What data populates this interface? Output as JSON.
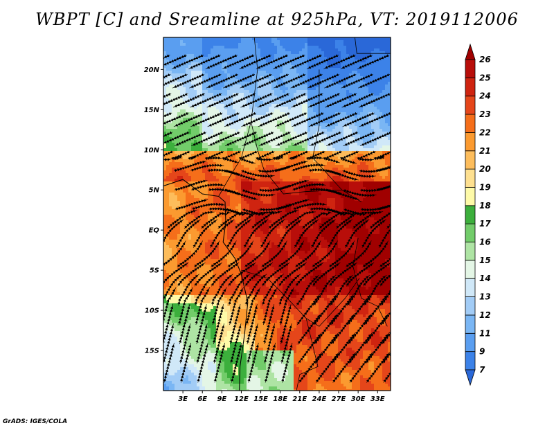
{
  "title": "WBPT [C] and Sreamline at 925hPa, VT: 2019112006",
  "credit": "GrADS: IGES/COLA",
  "map": {
    "lon_range": [
      0,
      35
    ],
    "lat_range": [
      -20,
      24
    ],
    "lat_ticks": [
      {
        "lat": 20,
        "label": "20N"
      },
      {
        "lat": 15,
        "label": "15N"
      },
      {
        "lat": 10,
        "label": "10N"
      },
      {
        "lat": 5,
        "label": "5N"
      },
      {
        "lat": 0,
        "label": "EQ"
      },
      {
        "lat": -5,
        "label": "5S"
      },
      {
        "lat": -10,
        "label": "10S"
      },
      {
        "lat": -15,
        "label": "15S"
      }
    ],
    "lon_ticks": [
      {
        "lon": 3,
        "label": "3E"
      },
      {
        "lon": 6,
        "label": "6E"
      },
      {
        "lon": 9,
        "label": "9E"
      },
      {
        "lon": 12,
        "label": "12E"
      },
      {
        "lon": 15,
        "label": "15E"
      },
      {
        "lon": 18,
        "label": "18E"
      },
      {
        "lon": 21,
        "label": "21E"
      },
      {
        "lon": 24,
        "label": "24E"
      },
      {
        "lon": 27,
        "label": "27E"
      },
      {
        "lon": 30,
        "label": "30E"
      },
      {
        "lon": 33,
        "label": "33E"
      }
    ]
  },
  "colorbar": {
    "labels": [
      "7",
      "9",
      "11",
      "12",
      "13",
      "14",
      "15",
      "16",
      "17",
      "18",
      "19",
      "20",
      "21",
      "22",
      "23",
      "24",
      "25",
      "26"
    ],
    "colors": [
      "#2a68d8",
      "#3c82e8",
      "#5a9ef0",
      "#7ab6f4",
      "#a2ccf6",
      "#d0e8f8",
      "#e4f6e6",
      "#aee4a4",
      "#72cc6a",
      "#3caf3c",
      "#fefaa8",
      "#fee090",
      "#fdbd5c",
      "#fb9a30",
      "#f56e1a",
      "#e5461a",
      "#cf2410",
      "#b80e0a",
      "#a00000"
    ]
  }
}
